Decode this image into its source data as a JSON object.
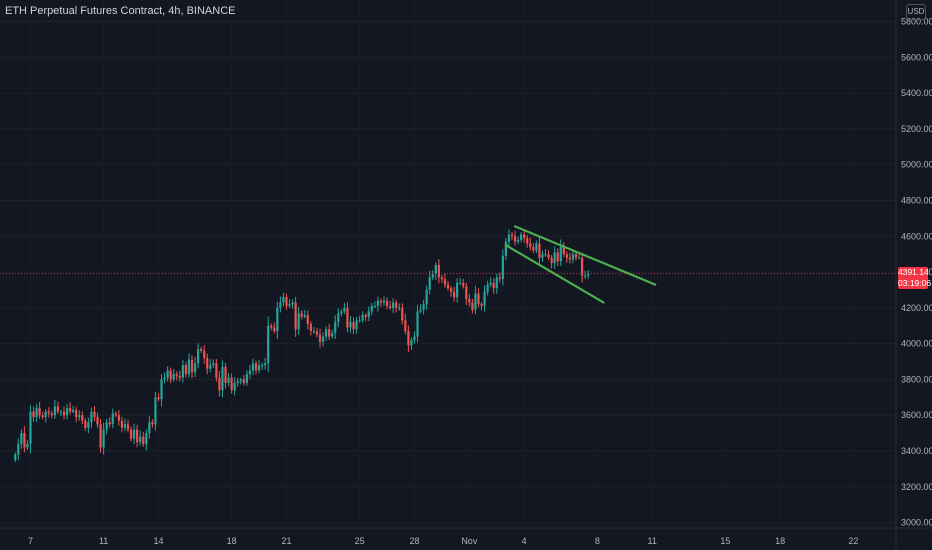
{
  "header": {
    "symbol_title": "ETH Perpetual Futures Contract, 4h, BINANCE",
    "currency": "USD"
  },
  "price_badge": {
    "price": "4391.14",
    "countdown": "03:19:06",
    "color": "#f23645"
  },
  "colors": {
    "background": "#131722",
    "up": "#26a69a",
    "down": "#ef5350",
    "trendline": "#4caf50",
    "axis_text": "#b2b5be"
  },
  "chart_data": {
    "type": "candlestick",
    "timeframe": "4h",
    "symbol": "ETH Perpetual Futures Contract",
    "exchange": "BINANCE",
    "y_axis": {
      "ticks": [
        3000,
        3200,
        3400,
        3600,
        3800,
        4000,
        4200,
        4400,
        4600,
        4800,
        5000,
        5200,
        5400,
        5600,
        5800
      ],
      "tick_labels": [
        "3000.00",
        "3200.00",
        "3400.00",
        "3600.00",
        "3800.00",
        "4000.00",
        "4200.00",
        "4400.00",
        "4600.00",
        "4800.00",
        "5000.00",
        "5200.00",
        "5400.00",
        "5600.00",
        "5800.00"
      ],
      "range": [
        2970,
        5920
      ]
    },
    "x_axis": {
      "tick_labels": [
        "7",
        "11",
        "14",
        "18",
        "21",
        "25",
        "28",
        "Nov",
        "4",
        "8",
        "11",
        "15",
        "18",
        "22"
      ],
      "tick_bar_index": [
        5,
        29,
        47,
        71,
        89,
        113,
        131,
        149,
        167,
        191,
        209,
        233,
        251,
        275
      ],
      "range_bars": [
        -5,
        289
      ]
    },
    "last_price": 4391.14,
    "closes": [
      3380,
      3440,
      3500,
      3420,
      3440,
      3620,
      3590,
      3640,
      3600,
      3590,
      3620,
      3610,
      3600,
      3650,
      3620,
      3620,
      3600,
      3640,
      3620,
      3630,
      3590,
      3600,
      3570,
      3530,
      3560,
      3620,
      3590,
      3550,
      3420,
      3520,
      3560,
      3550,
      3610,
      3600,
      3570,
      3530,
      3550,
      3520,
      3470,
      3520,
      3450,
      3480,
      3440,
      3500,
      3560,
      3550,
      3700,
      3690,
      3800,
      3810,
      3850,
      3800,
      3830,
      3820,
      3810,
      3880,
      3830,
      3910,
      3840,
      3890,
      3970,
      3960,
      3920,
      3860,
      3880,
      3890,
      3810,
      3740,
      3870,
      3780,
      3810,
      3740,
      3780,
      3790,
      3800,
      3780,
      3830,
      3850,
      3890,
      3850,
      3880,
      3880,
      3890,
      4100,
      4090,
      4070,
      4200,
      4230,
      4260,
      4210,
      4220,
      4230,
      4080,
      4170,
      4150,
      4160,
      4110,
      4070,
      4070,
      4050,
      4010,
      4040,
      4080,
      4040,
      4060,
      4120,
      4170,
      4180,
      4200,
      4090,
      4120,
      4080,
      4130,
      4130,
      4160,
      4150,
      4180,
      4210,
      4210,
      4240,
      4230,
      4240,
      4210,
      4200,
      4230,
      4200,
      4200,
      4130,
      4070,
      3990,
      4020,
      4040,
      4180,
      4190,
      4220,
      4300,
      4370,
      4390,
      4440,
      4370,
      4360,
      4330,
      4310,
      4290,
      4260,
      4340,
      4340,
      4320,
      4250,
      4230,
      4190,
      4280,
      4220,
      4210,
      4290,
      4330,
      4340,
      4310,
      4370,
      4360,
      4490,
      4570,
      4610,
      4600,
      4570,
      4580,
      4610,
      4590,
      4560,
      4540,
      4520,
      4560,
      4480,
      4500,
      4500,
      4480,
      4450,
      4510,
      4460,
      4540,
      4500,
      4480,
      4470,
      4500,
      4480,
      4480,
      4380,
      4380,
      4391
    ]
  }
}
